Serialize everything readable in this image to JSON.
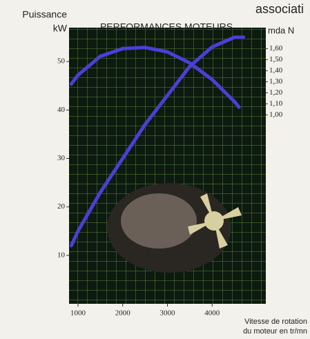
{
  "chart_data": {
    "type": "line",
    "header": "associati",
    "title": "PERFORMANCES MOTEURS",
    "ylabel": [
      "Puissance",
      "kW"
    ],
    "y2label": "mda N",
    "xlabel": [
      "Vitesse de rotation",
      "du moteur en tr/mn"
    ],
    "xlim": [
      800,
      5200
    ],
    "xticks": [
      1000,
      2000,
      3000,
      4000
    ],
    "ylim": [
      0,
      57
    ],
    "yticks": [
      10,
      20,
      30,
      40,
      50
    ],
    "y2lim": [
      -0.71,
      1.79
    ],
    "y2ticks": [
      {
        "value": 1.6,
        "label": "1,60"
      },
      {
        "value": 1.5,
        "label": "1,50"
      },
      {
        "value": 1.4,
        "label": "1,40"
      },
      {
        "value": 1.3,
        "label": "1,30"
      },
      {
        "value": 1.2,
        "label": "1,20"
      },
      {
        "value": 1.1,
        "label": "1,10"
      },
      {
        "value": 1.0,
        "label": "1,00"
      }
    ],
    "grid": true,
    "series": [
      {
        "color": "#4b3fd6",
        "x": [
          850,
          1000,
          1500,
          2000,
          2500,
          3000,
          3500,
          4000,
          4500,
          4700
        ],
        "values": [
          12,
          15,
          23,
          30,
          37,
          43,
          49,
          53,
          55,
          55
        ]
      },
      {
        "color": "#4b3fd6",
        "axis": "y2",
        "x": [
          850,
          1000,
          1500,
          2000,
          2500,
          3000,
          3500,
          4000,
          4500,
          4600
        ],
        "values": [
          1.28,
          1.36,
          1.53,
          1.6,
          1.61,
          1.57,
          1.47,
          1.32,
          1.12,
          1.07
        ]
      }
    ]
  }
}
